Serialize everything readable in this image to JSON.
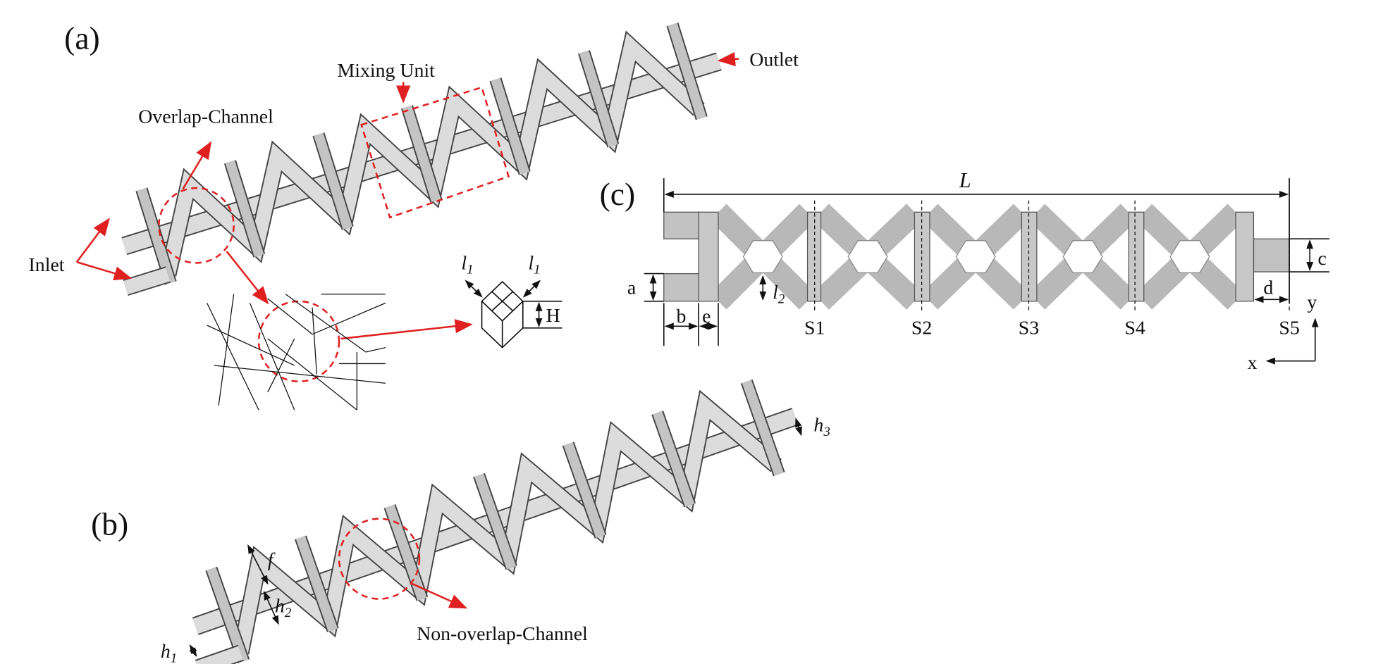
{
  "panel_a": {
    "label": "(a)",
    "mixing_unit": "Mixing Unit",
    "outlet": "Outlet",
    "overlap_channel": "Overlap-Channel",
    "inlet": "Inlet",
    "l1_left": {
      "base": "l",
      "sub": "1"
    },
    "l1_right": {
      "base": "l",
      "sub": "1"
    },
    "H": "H"
  },
  "panel_b": {
    "label": "(b)",
    "f": "f",
    "h1": {
      "base": "h",
      "sub": "1"
    },
    "h2": {
      "base": "h",
      "sub": "2"
    },
    "h3": {
      "base": "h",
      "sub": "3"
    },
    "non_overlap_channel": "Non-overlap-Channel"
  },
  "panel_c": {
    "label": "(c)",
    "L": "L",
    "a": "a",
    "b": "b",
    "e": "e",
    "c": "c",
    "d": "d",
    "l2": {
      "base": "l",
      "sub": "2"
    },
    "sections": [
      "S1",
      "S2",
      "S3",
      "S4",
      "S5"
    ],
    "axis_x": "x",
    "axis_y": "y"
  }
}
